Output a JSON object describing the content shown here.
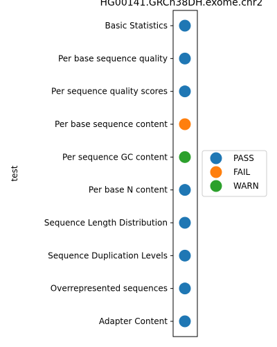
{
  "chart_data": {
    "type": "scatter",
    "title": "HG00141.GRCh38DH.exome.chr2",
    "ylabel": "test",
    "xlabel": "",
    "categories": [
      "Basic Statistics",
      "Per base sequence quality",
      "Per sequence quality scores",
      "Per base sequence content",
      "Per sequence GC content",
      "Per base N content",
      "Sequence Length Distribution",
      "Sequence Duplication Levels",
      "Overrepresented sequences",
      "Adapter Content"
    ],
    "statuses": [
      "PASS",
      "PASS",
      "PASS",
      "FAIL",
      "WARN",
      "PASS",
      "PASS",
      "PASS",
      "PASS",
      "PASS"
    ],
    "legend": [
      {
        "name": "PASS",
        "color": "#1f77b4"
      },
      {
        "name": "FAIL",
        "color": "#ff7f0e"
      },
      {
        "name": "WARN",
        "color": "#2ca02c"
      }
    ],
    "legend_position": "right",
    "grid": false
  }
}
